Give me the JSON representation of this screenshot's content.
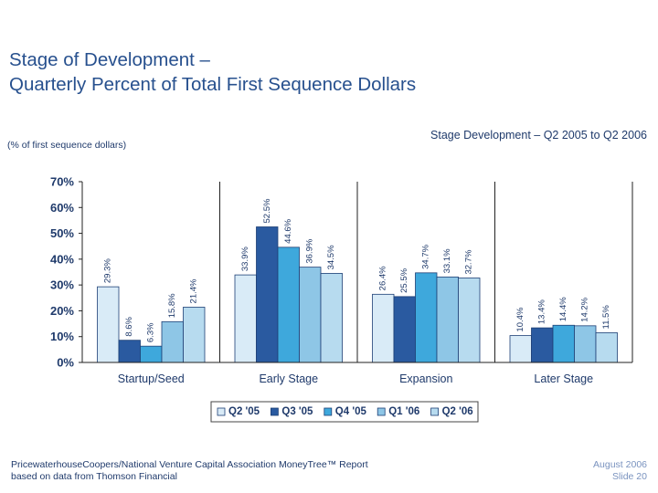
{
  "page": {
    "title_line1": "Stage of Development –",
    "title_line2": "Quarterly Percent of Total First Sequence Dollars",
    "unit_note": "(% of first sequence dollars)",
    "footer_source_line1": "PricewaterhouseCoopers/National Venture Capital Association MoneyTree™ Report",
    "footer_source_line2": "based on data from Thomson Financial",
    "footer_date": "August 2006",
    "footer_slide": "Slide 20"
  },
  "chart_data": {
    "type": "bar",
    "title": "Stage Development – Q2 2005 to Q2 2006",
    "categories": [
      "Startup/Seed",
      "Early Stage",
      "Expansion",
      "Later Stage"
    ],
    "series": [
      {
        "name": "Q2 '05",
        "color": "#d9ebf7",
        "values": [
          29.3,
          33.9,
          26.4,
          10.4
        ]
      },
      {
        "name": "Q3 '05",
        "color": "#2a5aa0",
        "values": [
          8.6,
          52.5,
          25.5,
          13.4
        ]
      },
      {
        "name": "Q4 '05",
        "color": "#3ea8dc",
        "values": [
          6.3,
          44.6,
          34.7,
          14.4
        ]
      },
      {
        "name": "Q1 '06",
        "color": "#8ec6e6",
        "values": [
          15.8,
          36.9,
          33.1,
          14.2
        ]
      },
      {
        "name": "Q2 '06",
        "color": "#b7dbef",
        "values": [
          21.4,
          34.5,
          32.7,
          11.5
        ]
      }
    ],
    "data_labels": [
      [
        "29.3%",
        "33.9%",
        "26.4%",
        "10.4%"
      ],
      [
        "8.6%",
        "52.5%",
        "25.5%",
        "13.4%"
      ],
      [
        "6.3%",
        "44.6%",
        "34.7%",
        "14.4%"
      ],
      [
        "15.8%",
        "36.9%",
        "33.1%",
        "14.2%"
      ],
      [
        "21.4%",
        "34.5%",
        "32.7%",
        "11.5%"
      ]
    ],
    "y_ticks": [
      0,
      10,
      20,
      30,
      40,
      50,
      60,
      70
    ],
    "y_tick_labels": [
      "0%",
      "10%",
      "20%",
      "30%",
      "40%",
      "50%",
      "60%",
      "70%"
    ],
    "ylim": [
      0,
      70
    ],
    "grid": false,
    "legend": "bottom"
  }
}
